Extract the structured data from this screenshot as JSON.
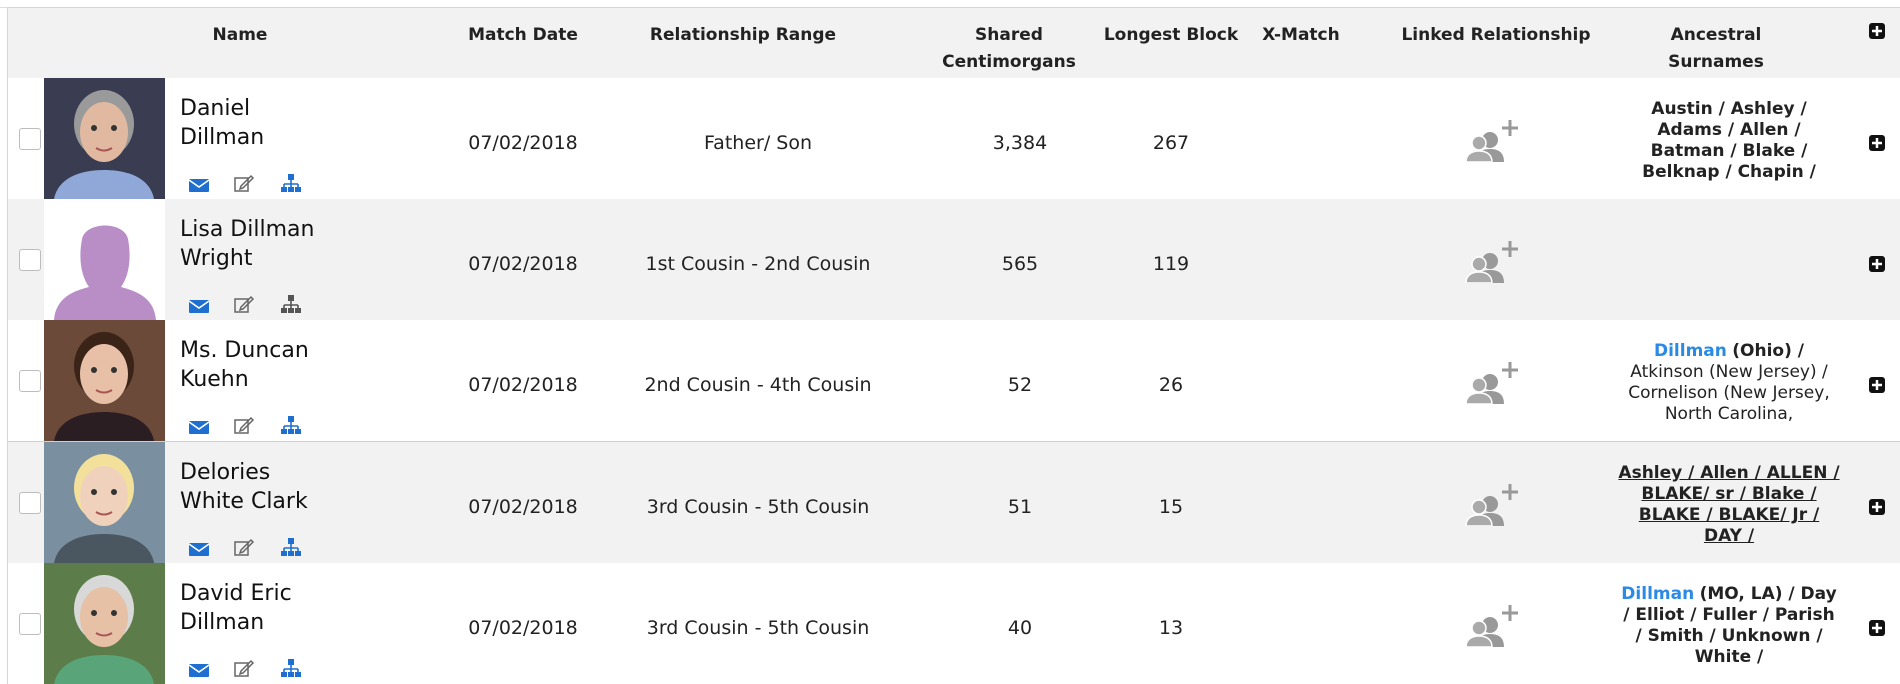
{
  "header": {
    "columns": [
      "Name",
      "Match Date",
      "Relationship Range",
      "Shared Centimorgans",
      "Longest Block",
      "X-Match",
      "Linked Relationship",
      "Ancestral Surnames"
    ]
  },
  "rows": [
    {
      "name": "Daniel Dillman",
      "match_date": "07/02/2018",
      "relationship": "Father/ Son",
      "shared_cm": "3,384",
      "longest_block": 267,
      "surnames": [
        {
          "text": "Austin / Ashley / Adams / Allen / Batman / Blake / Belknap / Chapin /",
          "style": "bold"
        }
      ]
    },
    {
      "name": "Lisa Dillman Wright",
      "match_date": "07/02/2018",
      "relationship": "1st Cousin - 2nd Cousin",
      "shared_cm": 565,
      "longest_block": 119
    },
    {
      "name": "Ms. Duncan Kuehn",
      "match_date": "07/02/2018",
      "relationship": "2nd Cousin - 4th Cousin",
      "shared_cm": 52,
      "longest_block": 26,
      "surnames": [
        {
          "text": "Dillman",
          "style": "link"
        },
        {
          "text": "(Ohio) /",
          "style": "bold"
        },
        {
          "text": "Atkinson (New Jersey) / Cornelison (New Jersey, North Carolina,",
          "style": "normal"
        }
      ]
    },
    {
      "name": "Delories White Clark",
      "match_date": "07/02/2018",
      "relationship": "3rd Cousin - 5th Cousin",
      "shared_cm": 51,
      "longest_block": 15,
      "surnames": [
        {
          "text": "Ashley / Allen / ALLEN / BLAKE/ sr / Blake / BLAKE / BLAKE/ Jr / DAY /",
          "style": "underline"
        }
      ]
    },
    {
      "name": "David Eric Dillman",
      "match_date": "07/02/2018",
      "relationship": "3rd Cousin - 5th Cousin",
      "shared_cm": 40,
      "longest_block": 13,
      "surnames": [
        {
          "text": "Dillman",
          "style": "link"
        },
        {
          "text": "(MO, LA) / Day / Elliot / Fuller / Parish / Smith / Unknown / White /",
          "style": "bold"
        }
      ]
    }
  ]
}
